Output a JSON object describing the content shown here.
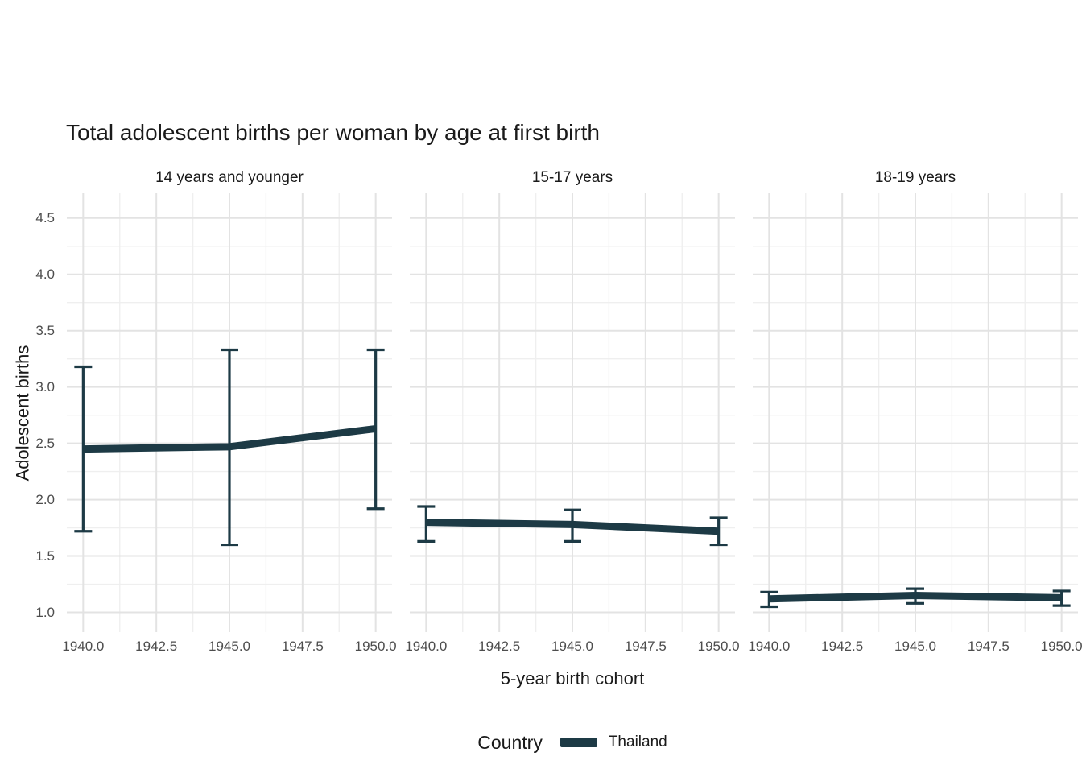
{
  "legend": {
    "title": "Country",
    "entries": [
      {
        "label": "Thailand",
        "color": "#1d3a45"
      }
    ],
    "position": "bottom"
  },
  "axes": {
    "x_tick_labels": [
      "1940.0",
      "1942.5",
      "1945.0",
      "1947.5",
      "1950.0"
    ],
    "x_major_ticks": [
      1940,
      1942.5,
      1945,
      1947.5,
      1950
    ],
    "x_minor_ticks": [
      1941.25,
      1943.75,
      1946.25,
      1948.75
    ],
    "y_tick_labels": [
      "1.0",
      "1.5",
      "2.0",
      "2.5",
      "3.0",
      "3.5",
      "4.0",
      "4.5"
    ],
    "y_major_ticks": [
      1.0,
      1.5,
      2.0,
      2.5,
      3.0,
      3.5,
      4.0,
      4.5
    ],
    "y_minor_ticks": [
      1.25,
      1.75,
      2.25,
      2.75,
      3.25,
      3.75,
      4.25
    ]
  },
  "colors": {
    "series": "#1d3a45",
    "grid_major": "#e3e3e3",
    "grid_minor": "#efefef",
    "tick_label": "#4d4d4d",
    "text": "#1a1a1a",
    "background": "#ffffff"
  },
  "chart_data": {
    "type": "line",
    "title": "Total adolescent births per woman by age at first birth",
    "xlabel": "5-year birth cohort",
    "ylabel": "Adolescent births",
    "series_name": "Thailand",
    "x": [
      1940,
      1945,
      1950
    ],
    "xlim": [
      1939.44,
      1950.56
    ],
    "ylim": [
      0.825,
      4.72
    ],
    "grid": "major+minor",
    "legend_position": "bottom",
    "error_bars": "confidence interval caps",
    "facets": [
      {
        "label": "14 years and younger",
        "means": [
          2.45,
          2.47,
          2.63
        ],
        "ci_lower": [
          1.72,
          1.6,
          1.92
        ],
        "ci_upper": [
          3.18,
          3.33,
          3.33
        ]
      },
      {
        "label": "15-17 years",
        "means": [
          1.8,
          1.78,
          1.72
        ],
        "ci_lower": [
          1.63,
          1.63,
          1.6
        ],
        "ci_upper": [
          1.94,
          1.91,
          1.84
        ]
      },
      {
        "label": "18-19 years",
        "means": [
          1.12,
          1.15,
          1.13
        ],
        "ci_lower": [
          1.05,
          1.08,
          1.06
        ],
        "ci_upper": [
          1.18,
          1.21,
          1.19
        ]
      }
    ]
  }
}
